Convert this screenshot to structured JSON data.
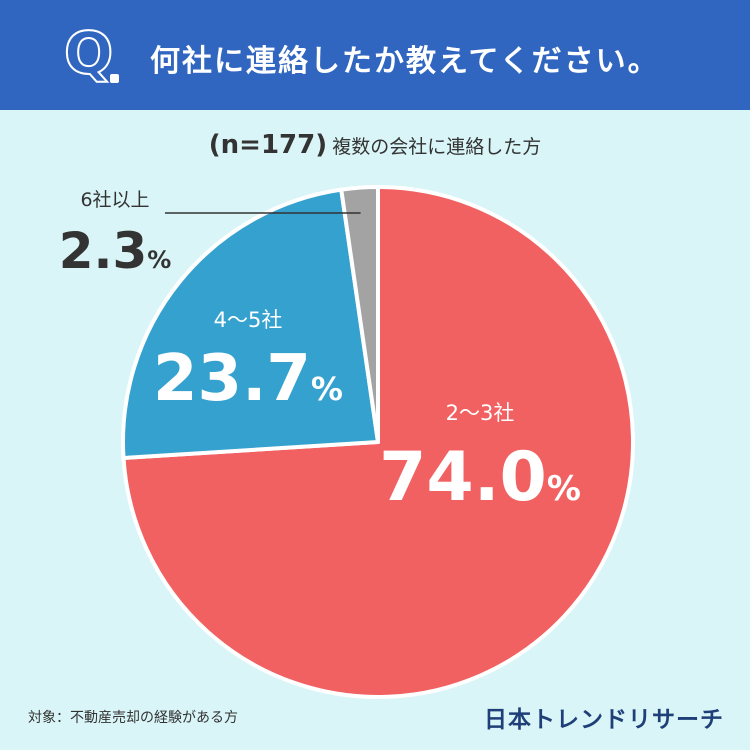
{
  "header": {
    "q_letter": "Q",
    "question": "何社に連絡したか教えてください。"
  },
  "sample": {
    "n_label": "(n=177)",
    "respondents": "複数の会社に連絡した方"
  },
  "chart_data": {
    "type": "pie",
    "title": "何社に連絡したか教えてください。",
    "categories": [
      "2〜3社",
      "4〜5社",
      "6社以上"
    ],
    "values": [
      74.0,
      23.7,
      2.3
    ],
    "unit": "%",
    "start": "12 o'clock",
    "direction": "clockwise",
    "colors": [
      "#f26161",
      "#35a1ce",
      "#a3a3a3"
    ],
    "slice_labels": [
      {
        "name": "2〜3社",
        "number": "74.0",
        "unit": "%"
      },
      {
        "name": "4〜5社",
        "number": "23.7",
        "unit": "%"
      },
      {
        "name": "6社以上",
        "number": "2.3",
        "unit": "%"
      }
    ]
  },
  "footer": {
    "target": "対象：不動産売却の経験がある方",
    "brand": "日本トレンドリサーチ"
  }
}
